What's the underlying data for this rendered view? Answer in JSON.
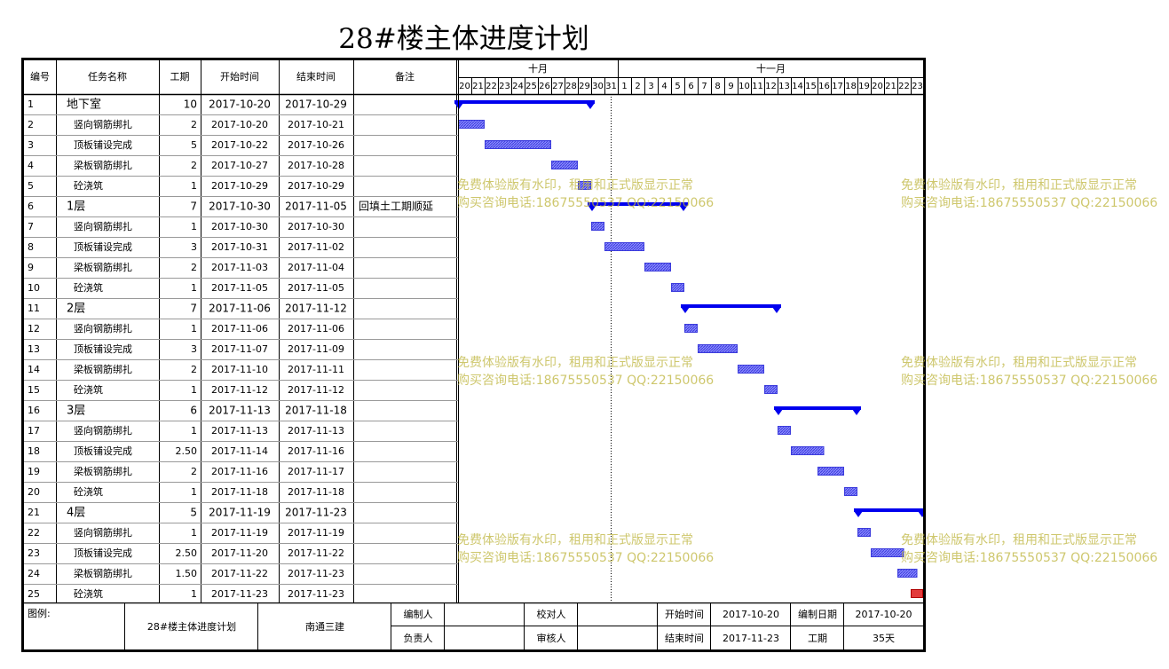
{
  "title": "28#楼主体进度计划",
  "headers": {
    "id": "编号",
    "name": "任务名称",
    "duration": "工期",
    "start": "开始时间",
    "end": "结束时间",
    "note": "备注"
  },
  "months": [
    {
      "label": "十月"
    },
    {
      "label": "十一月"
    }
  ],
  "days": [
    "20",
    "21",
    "22",
    "23",
    "24",
    "25",
    "26",
    "27",
    "28",
    "29",
    "30",
    "31",
    "1",
    "2",
    "3",
    "4",
    "5",
    "6",
    "7",
    "8",
    "9",
    "10",
    "11",
    "12",
    "13",
    "14",
    "15",
    "16",
    "17",
    "18",
    "19",
    "20",
    "21",
    "22",
    "23"
  ],
  "tasks": [
    {
      "id": "1",
      "name": "地下室",
      "duration": "10",
      "start": "2017-10-20",
      "end": "2017-10-29",
      "note": "",
      "summary": true,
      "day_from": 0,
      "day_to": 10
    },
    {
      "id": "2",
      "name": "竖向钢筋绑扎",
      "duration": "2",
      "start": "2017-10-20",
      "end": "2017-10-21",
      "note": "",
      "summary": false,
      "day_from": 0,
      "day_to": 2
    },
    {
      "id": "3",
      "name": "顶板铺设完成",
      "duration": "5",
      "start": "2017-10-22",
      "end": "2017-10-26",
      "note": "",
      "summary": false,
      "day_from": 2,
      "day_to": 7
    },
    {
      "id": "4",
      "name": "梁板钢筋绑扎",
      "duration": "2",
      "start": "2017-10-27",
      "end": "2017-10-28",
      "note": "",
      "summary": false,
      "day_from": 7,
      "day_to": 9
    },
    {
      "id": "5",
      "name": "砼浇筑",
      "duration": "1",
      "start": "2017-10-29",
      "end": "2017-10-29",
      "note": "",
      "summary": false,
      "day_from": 9,
      "day_to": 10
    },
    {
      "id": "6",
      "name": "1层",
      "duration": "7",
      "start": "2017-10-30",
      "end": "2017-11-05",
      "note": "回填土工期顺延",
      "summary": true,
      "day_from": 10,
      "day_to": 17
    },
    {
      "id": "7",
      "name": "竖向钢筋绑扎",
      "duration": "1",
      "start": "2017-10-30",
      "end": "2017-10-30",
      "note": "",
      "summary": false,
      "day_from": 10,
      "day_to": 11
    },
    {
      "id": "8",
      "name": "顶板铺设完成",
      "duration": "3",
      "start": "2017-10-31",
      "end": "2017-11-02",
      "note": "",
      "summary": false,
      "day_from": 11,
      "day_to": 14
    },
    {
      "id": "9",
      "name": "梁板钢筋绑扎",
      "duration": "2",
      "start": "2017-11-03",
      "end": "2017-11-04",
      "note": "",
      "summary": false,
      "day_from": 14,
      "day_to": 16
    },
    {
      "id": "10",
      "name": "砼浇筑",
      "duration": "1",
      "start": "2017-11-05",
      "end": "2017-11-05",
      "note": "",
      "summary": false,
      "day_from": 16,
      "day_to": 17
    },
    {
      "id": "11",
      "name": "2层",
      "duration": "7",
      "start": "2017-11-06",
      "end": "2017-11-12",
      "note": "",
      "summary": true,
      "day_from": 17,
      "day_to": 24
    },
    {
      "id": "12",
      "name": "竖向钢筋绑扎",
      "duration": "1",
      "start": "2017-11-06",
      "end": "2017-11-06",
      "note": "",
      "summary": false,
      "day_from": 17,
      "day_to": 18
    },
    {
      "id": "13",
      "name": "顶板铺设完成",
      "duration": "3",
      "start": "2017-11-07",
      "end": "2017-11-09",
      "note": "",
      "summary": false,
      "day_from": 18,
      "day_to": 21
    },
    {
      "id": "14",
      "name": "梁板钢筋绑扎",
      "duration": "2",
      "start": "2017-11-10",
      "end": "2017-11-11",
      "note": "",
      "summary": false,
      "day_from": 21,
      "day_to": 23
    },
    {
      "id": "15",
      "name": "砼浇筑",
      "duration": "1",
      "start": "2017-11-12",
      "end": "2017-11-12",
      "note": "",
      "summary": false,
      "day_from": 23,
      "day_to": 24
    },
    {
      "id": "16",
      "name": "3层",
      "duration": "6",
      "start": "2017-11-13",
      "end": "2017-11-18",
      "note": "",
      "summary": true,
      "day_from": 24,
      "day_to": 30
    },
    {
      "id": "17",
      "name": "竖向钢筋绑扎",
      "duration": "1",
      "start": "2017-11-13",
      "end": "2017-11-13",
      "note": "",
      "summary": false,
      "day_from": 24,
      "day_to": 25
    },
    {
      "id": "18",
      "name": "顶板铺设完成",
      "duration": "2.50",
      "start": "2017-11-14",
      "end": "2017-11-16",
      "note": "",
      "summary": false,
      "day_from": 25,
      "day_to": 27.5
    },
    {
      "id": "19",
      "name": "梁板钢筋绑扎",
      "duration": "2",
      "start": "2017-11-16",
      "end": "2017-11-17",
      "note": "",
      "summary": false,
      "day_from": 27,
      "day_to": 29
    },
    {
      "id": "20",
      "name": "砼浇筑",
      "duration": "1",
      "start": "2017-11-18",
      "end": "2017-11-18",
      "note": "",
      "summary": false,
      "day_from": 29,
      "day_to": 30
    },
    {
      "id": "21",
      "name": "4层",
      "duration": "5",
      "start": "2017-11-19",
      "end": "2017-11-23",
      "note": "",
      "summary": true,
      "day_from": 30,
      "day_to": 35
    },
    {
      "id": "22",
      "name": "竖向钢筋绑扎",
      "duration": "1",
      "start": "2017-11-19",
      "end": "2017-11-19",
      "note": "",
      "summary": false,
      "day_from": 30,
      "day_to": 31
    },
    {
      "id": "23",
      "name": "顶板铺设完成",
      "duration": "2.50",
      "start": "2017-11-20",
      "end": "2017-11-22",
      "note": "",
      "summary": false,
      "day_from": 31,
      "day_to": 33.5
    },
    {
      "id": "24",
      "name": "梁板钢筋绑扎",
      "duration": "1.50",
      "start": "2017-11-22",
      "end": "2017-11-23",
      "note": "",
      "summary": false,
      "day_from": 33,
      "day_to": 34.5
    },
    {
      "id": "25",
      "name": "砼浇筑",
      "duration": "1",
      "start": "2017-11-23",
      "end": "2017-11-23",
      "note": "",
      "summary": false,
      "day_from": 34,
      "day_to": 35,
      "highlight": true
    }
  ],
  "today_marker_day": 12,
  "colors": {
    "summary_bar": "#0000ee",
    "task_bar": "#3c3cdc",
    "task_hatch": "#8a8aff",
    "highlight_bar": "#e23a3a",
    "grid": "#999999",
    "watermark": "#c8c070"
  },
  "watermark": {
    "line1": "免费体验版有水印，租用和正式版显示正常",
    "line2": "购买咨询电话:18675550537 QQ:22150066"
  },
  "footer": {
    "legend_label": "图例:",
    "project_name": "28#楼主体进度计划",
    "company": "南通三建",
    "prepared_by_label": "编制人",
    "prepared_by": "",
    "checked_by_label": "校对人",
    "checked_by": "",
    "start_label": "开始时间",
    "start_value": "2017-10-20",
    "prep_date_label": "编制日期",
    "prep_date_value": "2017-10-20",
    "responsible_label": "负责人",
    "responsible": "",
    "reviewer_label": "审核人",
    "reviewer": "",
    "end_label": "结束时间",
    "end_value": "2017-11-23",
    "duration_label": "工期",
    "duration_value": "35天"
  }
}
